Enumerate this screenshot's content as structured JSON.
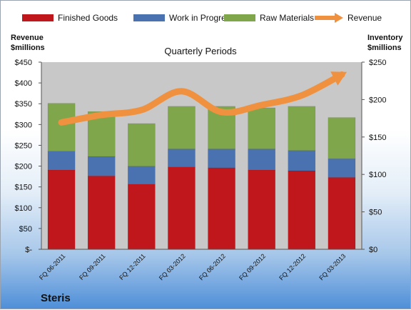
{
  "chart_data": {
    "type": "bar",
    "stacked": true,
    "title": "Quarterly Periods",
    "categories": [
      "FQ 06-2011",
      "FQ 09-2011",
      "FQ 12-2011",
      "FQ 03-2012",
      "FQ 06-2012",
      "FQ 09-2012",
      "FQ 12-2012",
      "FQ 03-2013"
    ],
    "y_left": {
      "label_line1": "Revenue",
      "label_line2": "$millions",
      "range": [
        0,
        450
      ],
      "ticks": [
        0,
        50,
        100,
        150,
        200,
        250,
        300,
        350,
        400,
        450
      ],
      "tick_labels": [
        "$-",
        "$50",
        "$100",
        "$150",
        "$200",
        "$250",
        "$300",
        "$350",
        "$400",
        "$450"
      ]
    },
    "y_right": {
      "label_line1": "Inventory",
      "label_line2": "$millions",
      "range": [
        0,
        250
      ],
      "ticks": [
        0,
        50,
        100,
        150,
        200,
        250
      ],
      "tick_labels": [
        "$0",
        "$50",
        "$100",
        "$150",
        "$200",
        "$250"
      ]
    },
    "series": [
      {
        "name": "Finished Goods",
        "axis": "right",
        "color": "#c0171c",
        "values": [
          106,
          98,
          87,
          110,
          109,
          106,
          105,
          96
        ]
      },
      {
        "name": "Work in Progress",
        "axis": "right",
        "color": "#4a71b0",
        "values": [
          25,
          26,
          24,
          24,
          25,
          28,
          27,
          25
        ]
      },
      {
        "name": "Raw Materials",
        "axis": "right",
        "color": "#7fa64a",
        "values": [
          64,
          60,
          57,
          57,
          57,
          55,
          59,
          55
        ]
      },
      {
        "name": "Revenue",
        "axis": "left",
        "type": "line",
        "color": "#f0913f",
        "values": [
          305,
          323,
          335,
          380,
          330,
          347,
          370,
          420
        ]
      }
    ],
    "legend_position": "top",
    "grid": false,
    "plot_background": "#c8c8c8"
  },
  "footer": {
    "brand": "Steris"
  }
}
